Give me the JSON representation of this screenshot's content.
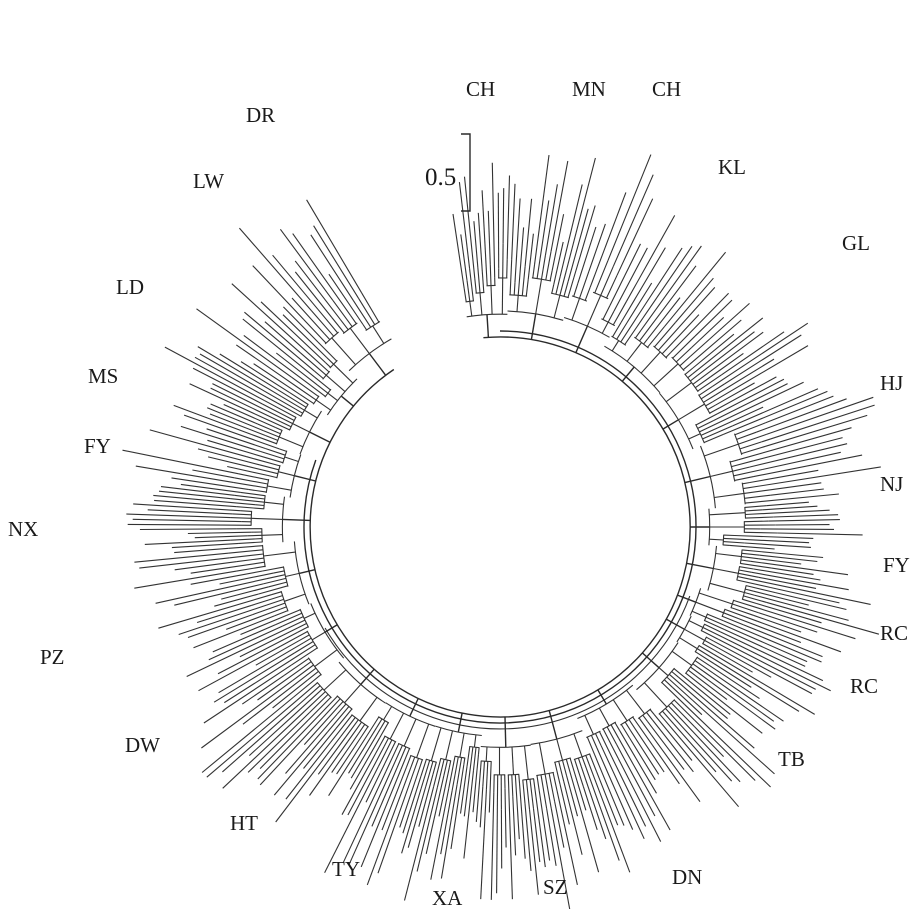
{
  "figure": {
    "scale_bar": {
      "label": "0.5"
    },
    "clades": [
      {
        "label": "CH",
        "leaves": 12
      },
      {
        "label": "MN",
        "leaves": 14
      },
      {
        "label": "CH",
        "leaves": 10
      },
      {
        "label": "KL",
        "leaves": 16
      },
      {
        "label": "GL",
        "leaves": 18
      },
      {
        "label": "HJ",
        "leaves": 16
      },
      {
        "label": "NJ",
        "leaves": 12
      },
      {
        "label": "FY",
        "leaves": 14
      },
      {
        "label": "RC",
        "leaves": 10
      },
      {
        "label": "RC",
        "leaves": 10
      },
      {
        "label": "TB",
        "leaves": 18
      },
      {
        "label": "DN",
        "leaves": 16
      },
      {
        "label": "SZ",
        "leaves": 14
      },
      {
        "label": "XA",
        "leaves": 14
      },
      {
        "label": "TY",
        "leaves": 14
      },
      {
        "label": "HT",
        "leaves": 16
      },
      {
        "label": "DW",
        "leaves": 18
      },
      {
        "label": "PZ",
        "leaves": 18
      },
      {
        "label": "NX",
        "leaves": 18
      },
      {
        "label": "FY",
        "leaves": 14
      },
      {
        "label": "MS",
        "leaves": 12
      },
      {
        "label": "LD",
        "leaves": 14
      },
      {
        "label": "LW",
        "leaves": 12
      },
      {
        "label": "DR",
        "leaves": 12
      }
    ]
  }
}
